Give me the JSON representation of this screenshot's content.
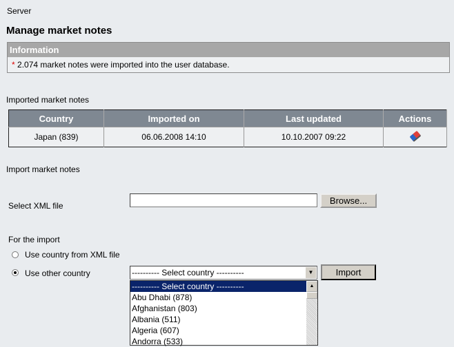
{
  "breadcrumb": "Server",
  "title": "Manage market notes",
  "info": {
    "header": "Information",
    "asterisk": "*",
    "message": "2.074 market notes were imported into the user database."
  },
  "imported": {
    "label": "Imported market notes",
    "columns": [
      "Country",
      "Imported on",
      "Last updated",
      "Actions"
    ],
    "rows": [
      {
        "country": "Japan (839)",
        "imported_on": "06.06.2008 14:10",
        "last_updated": "10.10.2007 09:22",
        "action_icon": "eraser-icon"
      }
    ]
  },
  "import": {
    "label": "Import market notes",
    "file_label": "Select XML file",
    "file_value": "",
    "browse": "Browse...",
    "for_import": "For the import",
    "radio_xml": "Use country from XML file",
    "radio_other": "Use other country",
    "selected_option": "---------- Select country ----------",
    "import_button": "Import",
    "options": [
      "---------- Select country ----------",
      "Abu Dhabi (878)",
      "Afghanistan (803)",
      "Albania (511)",
      "Algeria (607)",
      "Andorra (533)"
    ]
  }
}
